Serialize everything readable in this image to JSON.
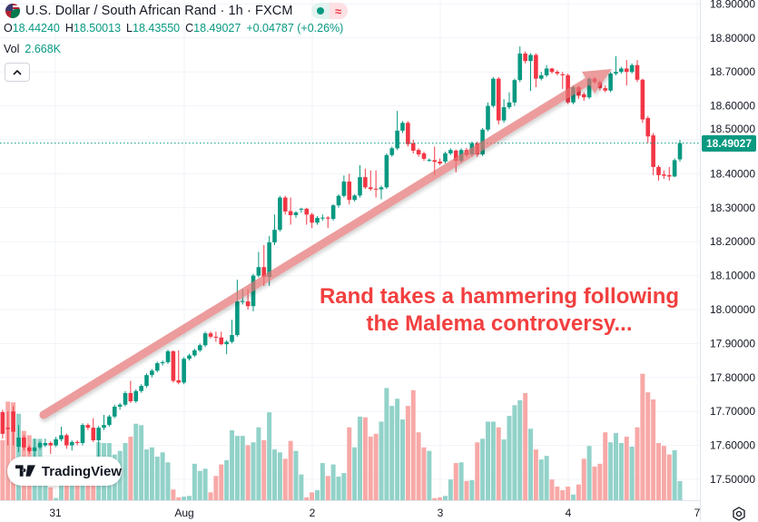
{
  "header": {
    "title": "U.S. Dollar / South African Rand · 1h · FXCM",
    "flag_icon": "usd-zar-flag-icon",
    "market_status_icon": "green-dot-icon",
    "delayed_icon": "wave-icon",
    "ohlc": {
      "o_label": "O",
      "o": "18.44240",
      "h_label": "H",
      "h": "18.50013",
      "l_label": "L",
      "l": "18.43550",
      "c_label": "C",
      "c": "18.49027",
      "change": "+0.04787 (+0.26%)"
    },
    "volume_label": "Vol",
    "volume_value": "2.668K",
    "collapse_icon": "chevron-up-icon"
  },
  "logo": {
    "text": "TradingView"
  },
  "annotation": {
    "line1": "Rand takes a hammering following",
    "line2": "the Malema controversy...",
    "color": "#f23f3f"
  },
  "price_label": "18.49027",
  "colors": {
    "up": "#089981",
    "down": "#f23645",
    "volume_up": "#92d2c9",
    "volume_down": "#f7a9a7",
    "arrow": "#e57373"
  },
  "chart_data": {
    "type": "candlestick",
    "title": "U.S. Dollar / South African Rand · 1h · FXCM",
    "interval": "1h",
    "x_tick_labels": [
      "31",
      "Aug",
      "2",
      "3",
      "4",
      "7"
    ],
    "y_tick_labels": [
      "18.90000",
      "18.80000",
      "18.70000",
      "18.60000",
      "18.50000",
      "18.40000",
      "18.30000",
      "18.20000",
      "18.10000",
      "18.00000",
      "17.90000",
      "17.80000",
      "17.70000",
      "17.60000",
      "17.50000"
    ],
    "ylim": [
      17.4,
      18.9
    ],
    "grid": true,
    "last_price": 18.49027,
    "volume_unit": "K",
    "candles_format": [
      "open",
      "high",
      "low",
      "close"
    ],
    "candles": [
      [
        17.698,
        17.705,
        17.62,
        17.634
      ],
      [
        17.652,
        17.7,
        17.6,
        17.648
      ],
      [
        17.7,
        17.715,
        17.6,
        17.64
      ],
      [
        17.596,
        17.66,
        17.58,
        17.623
      ],
      [
        17.623,
        17.63,
        17.585,
        17.594
      ],
      [
        17.594,
        17.6,
        17.575,
        17.583
      ],
      [
        17.583,
        17.62,
        17.56,
        17.594
      ],
      [
        17.594,
        17.612,
        17.588,
        17.607
      ],
      [
        17.6,
        17.62,
        17.595,
        17.607
      ],
      [
        17.607,
        17.612,
        17.575,
        17.6
      ],
      [
        17.6,
        17.625,
        17.595,
        17.618
      ],
      [
        17.618,
        17.655,
        17.612,
        17.63
      ],
      [
        17.63,
        17.635,
        17.59,
        17.6
      ],
      [
        17.6,
        17.615,
        17.585,
        17.61
      ],
      [
        17.61,
        17.615,
        17.6,
        17.607
      ],
      [
        17.607,
        17.665,
        17.6,
        17.66
      ],
      [
        17.66,
        17.665,
        17.645,
        17.652
      ],
      [
        17.652,
        17.68,
        17.61,
        17.615
      ],
      [
        17.615,
        17.657,
        17.56,
        17.652
      ],
      [
        17.652,
        17.69,
        17.645,
        17.66
      ],
      [
        17.66,
        17.69,
        17.655,
        17.685
      ],
      [
        17.685,
        17.72,
        17.68,
        17.714
      ],
      [
        17.714,
        17.725,
        17.705,
        17.72
      ],
      [
        17.72,
        17.76,
        17.715,
        17.754
      ],
      [
        17.754,
        17.79,
        17.725,
        17.73
      ],
      [
        17.73,
        17.765,
        17.725,
        17.76
      ],
      [
        17.76,
        17.78,
        17.755,
        17.775
      ],
      [
        17.775,
        17.812,
        17.77,
        17.807
      ],
      [
        17.807,
        17.825,
        17.8,
        17.82
      ],
      [
        17.82,
        17.847,
        17.815,
        17.842
      ],
      [
        17.842,
        17.85,
        17.835,
        17.845
      ],
      [
        17.845,
        17.882,
        17.84,
        17.877
      ],
      [
        17.877,
        17.88,
        17.785,
        17.79
      ],
      [
        17.792,
        17.88,
        17.78,
        17.785
      ],
      [
        17.785,
        17.86,
        17.78,
        17.855
      ],
      [
        17.855,
        17.87,
        17.85,
        17.865
      ],
      [
        17.865,
        17.885,
        17.86,
        17.88
      ],
      [
        17.88,
        17.9,
        17.875,
        17.895
      ],
      [
        17.895,
        17.935,
        17.89,
        17.93
      ],
      [
        17.93,
        17.935,
        17.915,
        17.92
      ],
      [
        17.92,
        17.935,
        17.905,
        17.918
      ],
      [
        17.918,
        17.935,
        17.895,
        17.898
      ],
      [
        17.898,
        17.91,
        17.869,
        17.905
      ],
      [
        17.905,
        17.97,
        17.9,
        17.925
      ],
      [
        17.925,
        18.088,
        17.92,
        18.024
      ],
      [
        18.024,
        18.06,
        18.015,
        18.025
      ],
      [
        18.024,
        18.06,
        18.0,
        18.01
      ],
      [
        18.01,
        18.105,
        17.995,
        18.1
      ],
      [
        18.1,
        18.17,
        18.095,
        18.125
      ],
      [
        18.125,
        18.19,
        18.07,
        18.096
      ],
      [
        18.096,
        18.217,
        18.07,
        18.198
      ],
      [
        18.198,
        18.28,
        18.19,
        18.235
      ],
      [
        18.235,
        18.335,
        18.23,
        18.33
      ],
      [
        18.33,
        18.335,
        18.28,
        18.289
      ],
      [
        18.29,
        18.33,
        18.25,
        18.278
      ],
      [
        18.278,
        18.29,
        18.27,
        18.286
      ],
      [
        18.296,
        18.3,
        18.285,
        18.297
      ],
      [
        18.297,
        18.3,
        18.25,
        18.28
      ],
      [
        18.28,
        18.285,
        18.24,
        18.256
      ],
      [
        18.256,
        18.275,
        18.25,
        18.27
      ],
      [
        18.27,
        18.28,
        18.262,
        18.271
      ],
      [
        18.271,
        18.275,
        18.24,
        18.268
      ],
      [
        18.267,
        18.31,
        18.262,
        18.307
      ],
      [
        18.307,
        18.34,
        18.3,
        18.335
      ],
      [
        18.335,
        18.395,
        18.33,
        18.377
      ],
      [
        18.377,
        18.4,
        18.31,
        18.323
      ],
      [
        18.323,
        18.34,
        18.318,
        18.336
      ],
      [
        18.336,
        18.425,
        18.33,
        18.39
      ],
      [
        18.39,
        18.415,
        18.355,
        18.36
      ],
      [
        18.36,
        18.41,
        18.35,
        18.355
      ],
      [
        18.356,
        18.41,
        18.33,
        18.354
      ],
      [
        18.354,
        18.365,
        18.325,
        18.36
      ],
      [
        18.36,
        18.46,
        18.355,
        18.455
      ],
      [
        18.455,
        18.48,
        18.45,
        18.475
      ],
      [
        18.475,
        18.585,
        18.47,
        18.527
      ],
      [
        18.527,
        18.555,
        18.52,
        18.55
      ],
      [
        18.55,
        18.555,
        18.48,
        18.487
      ],
      [
        18.49,
        18.5,
        18.46,
        18.468
      ],
      [
        18.47,
        18.475,
        18.45,
        18.457
      ],
      [
        18.46,
        18.465,
        18.438,
        18.444
      ],
      [
        18.44,
        18.445,
        18.435,
        18.441
      ],
      [
        18.44,
        18.48,
        18.396,
        18.435
      ],
      [
        18.436,
        18.445,
        18.425,
        18.43
      ],
      [
        18.436,
        18.465,
        18.43,
        18.46
      ],
      [
        18.46,
        18.475,
        18.455,
        18.47
      ],
      [
        18.468,
        18.472,
        18.404,
        18.438
      ],
      [
        18.438,
        18.475,
        18.432,
        18.47
      ],
      [
        18.47,
        18.476,
        18.45,
        18.455
      ],
      [
        18.457,
        18.495,
        18.452,
        18.49
      ],
      [
        18.49,
        18.495,
        18.45,
        18.457
      ],
      [
        18.457,
        18.535,
        18.452,
        18.53
      ],
      [
        18.53,
        18.61,
        18.525,
        18.6
      ],
      [
        18.6,
        18.685,
        18.595,
        18.68
      ],
      [
        18.68,
        18.685,
        18.545,
        18.557
      ],
      [
        18.557,
        18.62,
        18.55,
        18.596
      ],
      [
        18.596,
        18.64,
        18.59,
        18.61
      ],
      [
        18.61,
        18.68,
        18.6,
        18.676
      ],
      [
        18.676,
        18.775,
        18.67,
        18.754
      ],
      [
        18.754,
        18.76,
        18.725,
        18.732
      ],
      [
        18.732,
        18.755,
        18.644,
        18.75
      ],
      [
        18.75,
        18.755,
        18.655,
        18.68
      ],
      [
        18.68,
        18.7,
        18.675,
        18.69
      ],
      [
        18.69,
        18.72,
        18.685,
        18.71
      ],
      [
        18.71,
        18.712,
        18.695,
        18.7
      ],
      [
        18.7,
        18.705,
        18.69,
        18.695
      ],
      [
        18.693,
        18.7,
        18.65,
        18.69
      ],
      [
        18.69,
        18.695,
        18.605,
        18.61
      ],
      [
        18.61,
        18.66,
        18.605,
        18.655
      ],
      [
        18.655,
        18.66,
        18.62,
        18.63
      ],
      [
        18.634,
        18.64,
        18.615,
        18.625
      ],
      [
        18.625,
        18.685,
        18.62,
        18.68
      ],
      [
        18.68,
        18.685,
        18.665,
        18.67
      ],
      [
        18.67,
        18.675,
        18.645,
        18.652
      ],
      [
        18.652,
        18.66,
        18.64,
        18.645
      ],
      [
        18.645,
        18.7,
        18.64,
        18.695
      ],
      [
        18.695,
        18.746,
        18.69,
        18.7
      ],
      [
        18.7,
        18.715,
        18.695,
        18.71
      ],
      [
        18.71,
        18.735,
        18.66,
        18.7
      ],
      [
        18.7,
        18.725,
        18.695,
        18.72
      ],
      [
        18.72,
        18.735,
        18.67,
        18.677
      ],
      [
        18.677,
        18.68,
        18.55,
        18.56
      ],
      [
        18.564,
        18.57,
        18.49,
        18.51
      ],
      [
        18.513,
        18.52,
        18.396,
        18.42
      ],
      [
        18.42,
        18.425,
        18.38,
        18.396
      ],
      [
        18.398,
        18.41,
        18.385,
        18.394
      ],
      [
        18.396,
        18.42,
        18.38,
        18.392
      ],
      [
        18.392,
        18.445,
        18.39,
        18.44
      ],
      [
        18.4424,
        18.50013,
        18.4355,
        18.49027
      ]
    ],
    "volume": [
      8.4,
      13.8,
      13.7,
      12.1,
      9.7,
      9.1,
      8.6,
      8.6,
      3.8,
      1.8,
      0.3,
      3.2,
      2.5,
      3.8,
      3.2,
      5.7,
      4.4,
      5.1,
      8.1,
      8.0,
      8.0,
      6.4,
      6.9,
      8.0,
      8.9,
      10.7,
      10.5,
      7.1,
      7.4,
      6.1,
      6.7,
      5.3,
      1.5,
      0.4,
      0.5,
      0.6,
      5.1,
      4.1,
      4.4,
      1.1,
      3.4,
      5.0,
      5.6,
      9.8,
      9.0,
      9.0,
      7.7,
      8.1,
      10.2,
      8.4,
      12.3,
      7.1,
      6.7,
      5.8,
      8.3,
      6.9,
      3.6,
      0.4,
      1.1,
      1.4,
      5.2,
      3.4,
      5.0,
      3.3,
      3.8,
      10.2,
      7.4,
      11.7,
      11.6,
      8.9,
      9.3,
      11.0,
      15.7,
      13.2,
      14.2,
      11.3,
      13.2,
      15.4,
      9.5,
      7.4,
      6.9,
      0.3,
      0.4,
      0.6,
      2.9,
      5.2,
      5.3,
      2.7,
      2.8,
      8.1,
      8.6,
      11.0,
      11.0,
      10.2,
      8.5,
      11.8,
      13.3,
      14.0,
      15.0,
      10.0,
      7.1,
      5.7,
      6.2,
      2.9,
      1.9,
      1.4,
      1.9,
      0.8,
      2.2,
      5.8,
      7.6,
      4.7,
      5.1,
      9.5,
      8.1,
      9.4,
      8.0,
      8.9,
      7.5,
      10.2,
      17.7,
      15.1,
      14.1,
      8.0,
      7.6,
      6.4,
      7.0,
      2.668
    ]
  },
  "settings_icon": "gear-icon"
}
